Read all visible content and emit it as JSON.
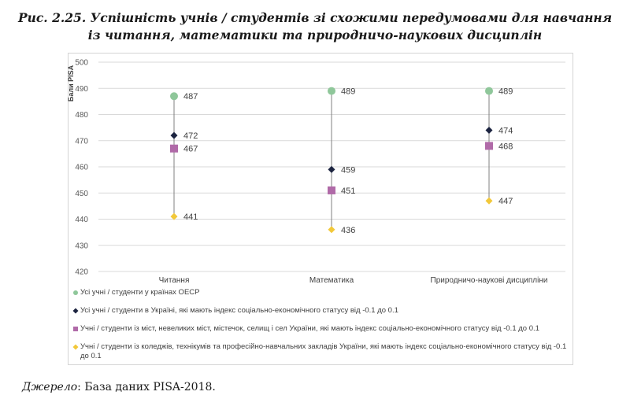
{
  "figure": {
    "title_line1": "Рис. 2.25. Успішність учнів / студентів зі схожими передумовами для навчання",
    "title_line2": "із читання, математики та природничо-наукових дисциплін"
  },
  "source": {
    "label": "Джерело",
    "text": ": База даних PISA-2018."
  },
  "colors": {
    "oecd": "#8fc79a",
    "ukraine_all": "#1c2440",
    "ukraine_city": "#b06aa8",
    "ukraine_college": "#f2c83a",
    "range_line": "#808080",
    "grid": "#d9d9d9"
  },
  "chart_data": {
    "type": "scatter",
    "title": "",
    "ylabel": "Бали PISA",
    "xlabel": "",
    "ylim": [
      420,
      500
    ],
    "yticks": [
      420,
      430,
      440,
      450,
      460,
      470,
      480,
      490,
      500
    ],
    "grid": true,
    "categories": [
      "Читання",
      "Математика",
      "Природничо-наукові дисципліни"
    ],
    "series": [
      {
        "name": "Усі учні / студенти у країнах ОЕСР",
        "marker": "circle",
        "values": [
          487,
          489,
          489
        ]
      },
      {
        "name": "Усі учні / студенти в Україні, які мають індекс соціально-економічного статусу від -0.1 до 0.1",
        "marker": "diamond",
        "values": [
          472,
          459,
          474
        ]
      },
      {
        "name": "Учні / студенти із міст, невеликих міст, містечок, селищ і сел  України, які мають індекс соціально-економічного статусу від -0.1 до 0.1",
        "marker": "square",
        "values": [
          467,
          451,
          468
        ]
      },
      {
        "name": "Учні / студенти із коледжів, технікумів та професійно-навчальних закладів України, які мають індекс соціально-економічного статусу від -0.1 до 0.1",
        "marker": "diamond",
        "values": [
          441,
          436,
          447
        ]
      }
    ],
    "legend": "bottom"
  }
}
